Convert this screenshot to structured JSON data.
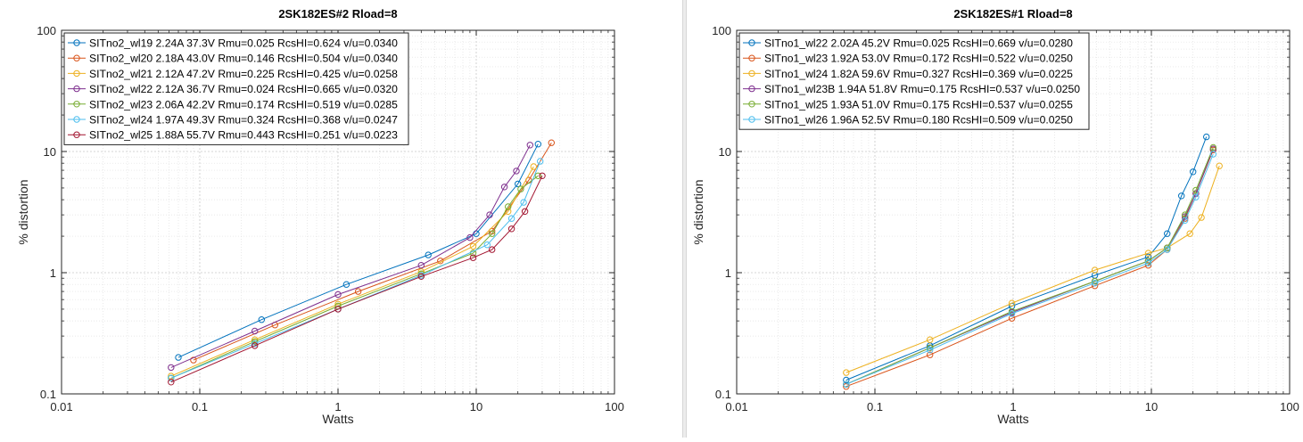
{
  "chart_data": [
    {
      "type": "line",
      "title": "2SK182ES#2 Rload=8",
      "xlabel": "Watts",
      "ylabel": "% distortion",
      "xscale": "log",
      "yscale": "log",
      "xlim": [
        0.01,
        100
      ],
      "ylim": [
        0.1,
        100
      ],
      "x_ticks": [
        "0.01",
        "0.1",
        "1",
        "10",
        "100"
      ],
      "y_ticks": [
        "0.1",
        "1",
        "10",
        "100"
      ],
      "grid": true,
      "legend_position": "top-left",
      "series": [
        {
          "name": "SITno2_wl19 2.24A 37.3V Rmu=0.025 RcsHI=0.624 v/u=0.0340",
          "color": "#0072bd",
          "points": [
            [
              0.07,
              0.2
            ],
            [
              0.28,
              0.41
            ],
            [
              1.15,
              0.8
            ],
            [
              4.5,
              1.4
            ],
            [
              10.0,
              2.1
            ],
            [
              20.0,
              5.4
            ],
            [
              28.0,
              11.5
            ]
          ]
        },
        {
          "name": "SITno2_wl20 2.18A 43.0V Rmu=0.146 RcsHI=0.504 v/u=0.0340",
          "color": "#d95319",
          "points": [
            [
              0.09,
              0.19
            ],
            [
              0.35,
              0.37
            ],
            [
              1.4,
              0.7
            ],
            [
              5.5,
              1.25
            ],
            [
              13.0,
              2.2
            ],
            [
              24.0,
              5.8
            ],
            [
              35.0,
              11.8
            ]
          ]
        },
        {
          "name": "SITno2_wl21 2.12A 47.2V Rmu=0.225 RcsHI=0.425 v/u=0.0258",
          "color": "#edb120",
          "points": [
            [
              0.062,
              0.14
            ],
            [
              0.25,
              0.28
            ],
            [
              1.0,
              0.55
            ],
            [
              4.0,
              1.02
            ],
            [
              9.5,
              1.65
            ],
            [
              17.0,
              3.2
            ],
            [
              26.0,
              7.5
            ]
          ]
        },
        {
          "name": "SITno2_wl22 2.12A 36.7V Rmu=0.024 RcsHI=0.665 v/u=0.0320",
          "color": "#7e2f8e",
          "points": [
            [
              0.062,
              0.165
            ],
            [
              0.25,
              0.33
            ],
            [
              1.0,
              0.66
            ],
            [
              4.0,
              1.15
            ],
            [
              9.0,
              1.95
            ],
            [
              12.5,
              3.0
            ],
            [
              16.0,
              5.1
            ],
            [
              19.5,
              6.9
            ],
            [
              24.5,
              11.3
            ]
          ]
        },
        {
          "name": "SITno2_wl23 2.06A 42.2V Rmu=0.174 RcsHI=0.519 v/u=0.0285",
          "color": "#77ac30",
          "points": [
            [
              0.062,
              0.135
            ],
            [
              0.25,
              0.27
            ],
            [
              1.0,
              0.53
            ],
            [
              4.0,
              0.98
            ],
            [
              9.5,
              1.45
            ],
            [
              13.0,
              2.1
            ],
            [
              17.0,
              3.5
            ],
            [
              21.0,
              4.9
            ],
            [
              28.0,
              6.3
            ]
          ]
        },
        {
          "name": "SITno2_wl24 1.97A 49.3V Rmu=0.324 RcsHI=0.368 v/u=0.0247",
          "color": "#4dbeee",
          "points": [
            [
              0.062,
              0.135
            ],
            [
              0.25,
              0.26
            ],
            [
              1.0,
              0.5
            ],
            [
              4.0,
              0.95
            ],
            [
              12.0,
              1.7
            ],
            [
              18.0,
              2.8
            ],
            [
              22.0,
              3.8
            ],
            [
              29.0,
              8.3
            ]
          ]
        },
        {
          "name": "SITno2_wl25 1.88A 55.7V Rmu=0.443 RcsHI=0.251 v/u=0.0223",
          "color": "#a2142f",
          "points": [
            [
              0.062,
              0.125
            ],
            [
              0.25,
              0.25
            ],
            [
              1.0,
              0.5
            ],
            [
              4.0,
              0.93
            ],
            [
              9.5,
              1.33
            ],
            [
              13.0,
              1.55
            ],
            [
              18.0,
              2.3
            ],
            [
              22.5,
              3.2
            ],
            [
              30.0,
              6.3
            ]
          ]
        }
      ]
    },
    {
      "type": "line",
      "title": "2SK182ES#1 Rload=8",
      "xlabel": "Watts",
      "ylabel": "% distortion",
      "xscale": "log",
      "yscale": "log",
      "xlim": [
        0.01,
        100
      ],
      "ylim": [
        0.1,
        100
      ],
      "x_ticks": [
        "0.01",
        "0.1",
        "1",
        "10",
        "100"
      ],
      "y_ticks": [
        "0.1",
        "1",
        "10",
        "100"
      ],
      "grid": true,
      "legend_position": "top-left",
      "series": [
        {
          "name": "SITno1_wl22 2.02A 45.2V Rmu=0.025 RcsHI=0.669 v/u=0.0280",
          "color": "#0072bd",
          "points": [
            [
              0.062,
              0.13
            ],
            [
              0.25,
              0.25
            ],
            [
              0.98,
              0.53
            ],
            [
              3.9,
              0.95
            ],
            [
              9.5,
              1.35
            ],
            [
              13.0,
              2.1
            ],
            [
              16.5,
              4.3
            ],
            [
              20.0,
              6.8
            ],
            [
              25.0,
              13.2
            ]
          ]
        },
        {
          "name": "SITno1_wl23 1.92A 53.0V Rmu=0.172 RcsHI=0.522 v/u=0.0250",
          "color": "#d95319",
          "points": [
            [
              0.062,
              0.115
            ],
            [
              0.25,
              0.21
            ],
            [
              0.98,
              0.42
            ],
            [
              3.9,
              0.78
            ],
            [
              9.5,
              1.15
            ],
            [
              13.0,
              1.55
            ],
            [
              17.5,
              2.8
            ],
            [
              21.0,
              4.5
            ],
            [
              28.0,
              10.3
            ]
          ]
        },
        {
          "name": "SITno1_wl24 1.82A 59.6V Rmu=0.327 RcsHI=0.369 v/u=0.0225",
          "color": "#edb120",
          "points": [
            [
              0.062,
              0.15
            ],
            [
              0.25,
              0.28
            ],
            [
              0.98,
              0.56
            ],
            [
              3.9,
              1.05
            ],
            [
              9.5,
              1.45
            ],
            [
              13.0,
              1.6
            ],
            [
              19.0,
              2.1
            ],
            [
              23.0,
              2.85
            ],
            [
              31.0,
              7.6
            ]
          ]
        },
        {
          "name": "SITno1_wl23B 1.94A 51.8V Rmu=0.175 RcsHI=0.537 v/u=0.0250",
          "color": "#7e2f8e",
          "points": [
            [
              0.062,
              0.12
            ],
            [
              0.25,
              0.24
            ],
            [
              0.98,
              0.47
            ],
            [
              3.9,
              0.85
            ],
            [
              9.5,
              1.25
            ],
            [
              13.0,
              1.6
            ],
            [
              17.5,
              2.9
            ],
            [
              21.0,
              4.5
            ],
            [
              28.0,
              10.5
            ]
          ]
        },
        {
          "name": "SITno1_wl25 1.93A 51.0V Rmu=0.175 RcsHI=0.537 v/u=0.0255",
          "color": "#77ac30",
          "points": [
            [
              0.062,
              0.12
            ],
            [
              0.25,
              0.24
            ],
            [
              0.98,
              0.48
            ],
            [
              3.9,
              0.85
            ],
            [
              9.5,
              1.25
            ],
            [
              13.0,
              1.6
            ],
            [
              17.5,
              3.0
            ],
            [
              21.0,
              4.8
            ],
            [
              28.0,
              10.8
            ]
          ]
        },
        {
          "name": "SITno1_wl26 1.96A 52.5V Rmu=0.180 RcsHI=0.509 v/u=0.0250",
          "color": "#4dbeee",
          "points": [
            [
              0.062,
              0.12
            ],
            [
              0.25,
              0.23
            ],
            [
              0.98,
              0.46
            ],
            [
              3.9,
              0.82
            ],
            [
              9.5,
              1.2
            ],
            [
              13.0,
              1.55
            ],
            [
              17.5,
              2.7
            ],
            [
              21.0,
              4.2
            ],
            [
              28.0,
              9.5
            ]
          ]
        }
      ]
    }
  ]
}
